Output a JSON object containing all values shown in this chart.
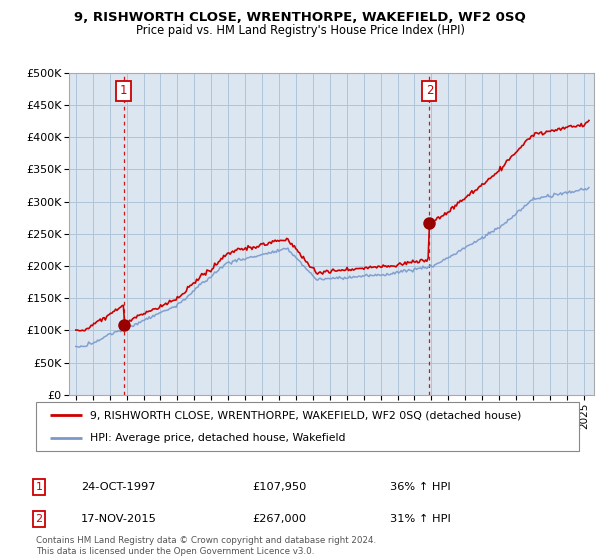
{
  "title": "9, RISHWORTH CLOSE, WRENTHORPE, WAKEFIELD, WF2 0SQ",
  "subtitle": "Price paid vs. HM Land Registry's House Price Index (HPI)",
  "ylim": [
    0,
    500000
  ],
  "yticks": [
    0,
    50000,
    100000,
    150000,
    200000,
    250000,
    300000,
    350000,
    400000,
    450000,
    500000
  ],
  "line1_color": "#cc0000",
  "line2_color": "#7799cc",
  "marker_color": "#990000",
  "vline_color": "#cc0000",
  "label1": "9, RISHWORTH CLOSE, WRENTHORPE, WAKEFIELD, WF2 0SQ (detached house)",
  "label2": "HPI: Average price, detached house, Wakefield",
  "sale1_date": "24-OCT-1997",
  "sale1_price": 107950,
  "sale1_pct": "36% ↑ HPI",
  "sale2_date": "17-NOV-2015",
  "sale2_price": 267000,
  "sale2_pct": "31% ↑ HPI",
  "footnote": "Contains HM Land Registry data © Crown copyright and database right 2024.\nThis data is licensed under the Open Government Licence v3.0.",
  "background_color": "#ffffff",
  "chart_bg_color": "#dce6f0",
  "grid_color": "#b0c4d8",
  "sale1_year": 1997.82,
  "sale2_year": 2015.88
}
